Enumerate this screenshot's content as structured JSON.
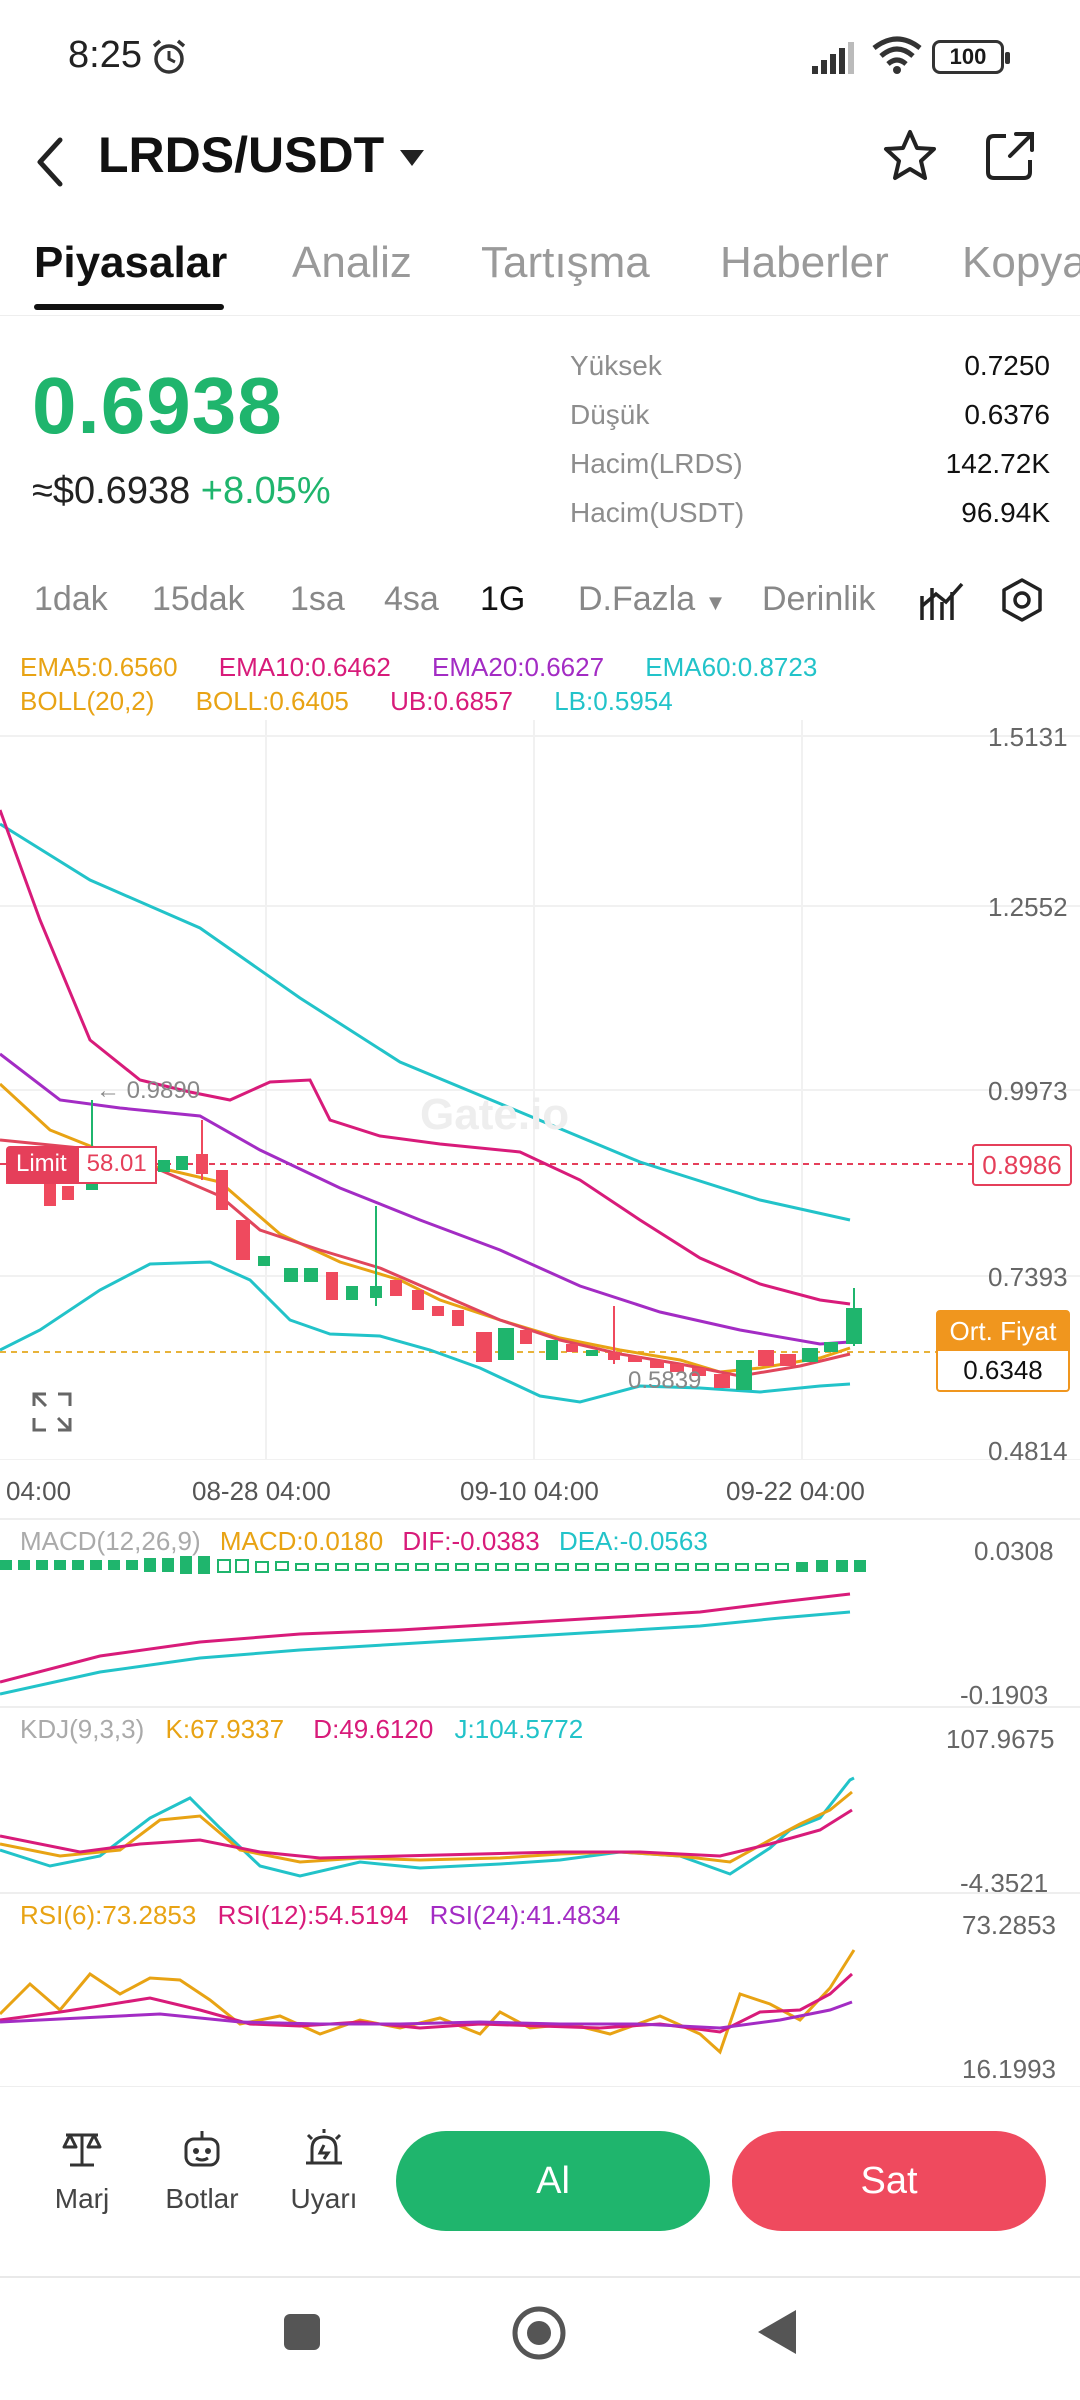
{
  "status": {
    "time": "8:25",
    "battery": "100"
  },
  "header": {
    "pair": "LRDS/USDT"
  },
  "tabs": [
    "Piyasalar",
    "Analiz",
    "Tartışma",
    "Haberler",
    "Kopya"
  ],
  "price": {
    "last": "0.6938",
    "usd": "≈$0.6938",
    "change": "+8.05%"
  },
  "stats": [
    {
      "label": "Yüksek",
      "value": "0.7250"
    },
    {
      "label": "Düşük",
      "value": "0.6376"
    },
    {
      "label": "Hacim(LRDS)",
      "value": "142.72K"
    },
    {
      "label": "Hacim(USDT)",
      "value": "96.94K"
    }
  ],
  "timeframes": [
    "1dak",
    "15dak",
    "1sa",
    "4sa",
    "1G",
    "D.Fazla",
    "Derinlik"
  ],
  "active_timeframe": "1G",
  "legend_main_1": [
    "EMA5:0.6560",
    "EMA10:0.6462",
    "EMA20:0.6627",
    "EMA60:0.8723"
  ],
  "legend_main_2": [
    "BOLL(20,2)",
    "BOLL:0.6405",
    "UB:0.6857",
    "LB:0.5954"
  ],
  "price_axis": [
    "1.5131",
    "1.2552",
    "0.9973",
    "0.7393",
    "0.4814"
  ],
  "date_axis": [
    "04:00",
    "08-28 04:00",
    "09-10 04:00",
    "09-22 04:00"
  ],
  "annotations": {
    "high_marker": "← 0.9890",
    "low_marker": "0.5839",
    "limit_label": "Limit",
    "limit_value": "58.01",
    "limit_price": "0.8986",
    "avg_label": "Ort. Fiyat",
    "avg_value": "0.6348",
    "watermark": "Gate.io"
  },
  "macd": {
    "legend": [
      "MACD(12,26,9)",
      "MACD:0.0180",
      "DIF:-0.0383",
      "DEA:-0.0563"
    ],
    "axis": [
      "0.0308",
      "-0.1903"
    ]
  },
  "kdj": {
    "legend": [
      "KDJ(9,3,3)",
      "K:67.9337",
      "D:49.6120",
      "J:104.5772"
    ],
    "axis": [
      "107.9675",
      "-4.3521"
    ]
  },
  "rsi": {
    "legend": [
      "RSI(6):73.2853",
      "RSI(12):54.5194",
      "RSI(24):41.4834"
    ],
    "axis": [
      "73.2853",
      "16.1993"
    ]
  },
  "bottom": {
    "margin": "Marj",
    "bots": "Botlar",
    "alert": "Uyarı",
    "buy": "Al",
    "sell": "Sat"
  },
  "colors": {
    "up": "#1fb56d",
    "down": "#ef4a5e",
    "ema5": "#e8a314",
    "ema10": "#d81b7a",
    "ema20": "#a32cc4",
    "ema60": "#22c3c9"
  }
}
